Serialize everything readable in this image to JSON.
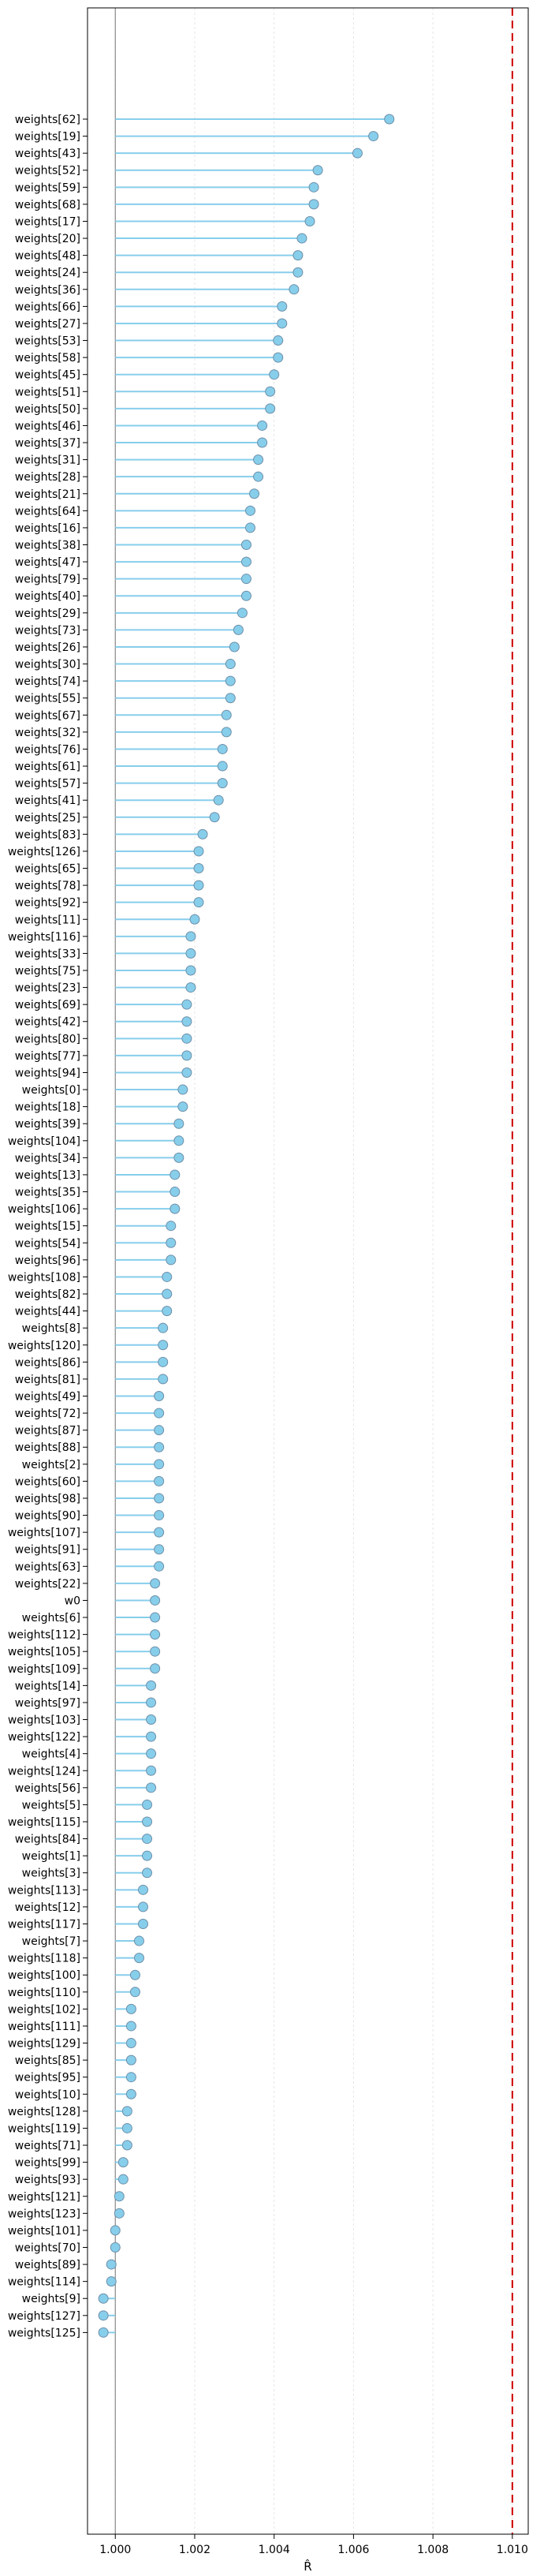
{
  "chart_data": {
    "type": "lollipop",
    "xlabel": "R̂",
    "xlim": [
      0.9993,
      1.0104
    ],
    "xticks": [
      1.0,
      1.002,
      1.004,
      1.006,
      1.008,
      1.01
    ],
    "xtick_labels": [
      "1.000",
      "1.002",
      "1.004",
      "1.006",
      "1.008",
      "1.010"
    ],
    "grid": "x",
    "reference_lines": [
      {
        "value": 1.0,
        "color": "#888888",
        "style": "solid"
      },
      {
        "value": 1.01,
        "color": "#cc0000",
        "style": "dashed"
      }
    ],
    "stem_color": "#87ceeb",
    "marker_color": "#87ceeb",
    "marker_edge": "#6d8fa8",
    "categories": [
      "weights[62]",
      "weights[19]",
      "weights[43]",
      "weights[52]",
      "weights[59]",
      "weights[68]",
      "weights[17]",
      "weights[20]",
      "weights[48]",
      "weights[24]",
      "weights[36]",
      "weights[66]",
      "weights[27]",
      "weights[53]",
      "weights[58]",
      "weights[45]",
      "weights[51]",
      "weights[50]",
      "weights[46]",
      "weights[37]",
      "weights[31]",
      "weights[28]",
      "weights[21]",
      "weights[64]",
      "weights[16]",
      "weights[38]",
      "weights[47]",
      "weights[79]",
      "weights[40]",
      "weights[29]",
      "weights[73]",
      "weights[26]",
      "weights[30]",
      "weights[74]",
      "weights[55]",
      "weights[67]",
      "weights[32]",
      "weights[76]",
      "weights[61]",
      "weights[57]",
      "weights[41]",
      "weights[25]",
      "weights[83]",
      "weights[126]",
      "weights[65]",
      "weights[78]",
      "weights[92]",
      "weights[11]",
      "weights[116]",
      "weights[33]",
      "weights[75]",
      "weights[23]",
      "weights[69]",
      "weights[42]",
      "weights[80]",
      "weights[77]",
      "weights[94]",
      "weights[0]",
      "weights[18]",
      "weights[39]",
      "weights[104]",
      "weights[34]",
      "weights[13]",
      "weights[35]",
      "weights[106]",
      "weights[15]",
      "weights[54]",
      "weights[96]",
      "weights[108]",
      "weights[82]",
      "weights[44]",
      "weights[8]",
      "weights[120]",
      "weights[86]",
      "weights[81]",
      "weights[49]",
      "weights[72]",
      "weights[87]",
      "weights[88]",
      "weights[2]",
      "weights[60]",
      "weights[98]",
      "weights[90]",
      "weights[107]",
      "weights[91]",
      "weights[63]",
      "weights[22]",
      "w0",
      "weights[6]",
      "weights[112]",
      "weights[105]",
      "weights[109]",
      "weights[14]",
      "weights[97]",
      "weights[103]",
      "weights[122]",
      "weights[4]",
      "weights[124]",
      "weights[56]",
      "weights[5]",
      "weights[115]",
      "weights[84]",
      "weights[1]",
      "weights[3]",
      "weights[113]",
      "weights[12]",
      "weights[117]",
      "weights[7]",
      "weights[118]",
      "weights[100]",
      "weights[110]",
      "weights[102]",
      "weights[111]",
      "weights[129]",
      "weights[85]",
      "weights[95]",
      "weights[10]",
      "weights[128]",
      "weights[119]",
      "weights[71]",
      "weights[99]",
      "weights[93]",
      "weights[121]",
      "weights[123]",
      "weights[101]",
      "weights[70]",
      "weights[89]",
      "weights[114]",
      "weights[9]",
      "weights[127]",
      "weights[125]"
    ],
    "values": [
      1.0069,
      1.0065,
      1.0061,
      1.0051,
      1.005,
      1.005,
      1.0049,
      1.0047,
      1.0046,
      1.0046,
      1.0045,
      1.0042,
      1.0042,
      1.0041,
      1.0041,
      1.004,
      1.0039,
      1.0039,
      1.0037,
      1.0037,
      1.0036,
      1.0036,
      1.0035,
      1.0034,
      1.0034,
      1.0033,
      1.0033,
      1.0033,
      1.0033,
      1.0032,
      1.0031,
      1.003,
      1.0029,
      1.0029,
      1.0029,
      1.0028,
      1.0028,
      1.0027,
      1.0027,
      1.0027,
      1.0026,
      1.0025,
      1.0022,
      1.0021,
      1.0021,
      1.0021,
      1.0021,
      1.002,
      1.0019,
      1.0019,
      1.0019,
      1.0019,
      1.0018,
      1.0018,
      1.0018,
      1.0018,
      1.0018,
      1.0017,
      1.0017,
      1.0016,
      1.0016,
      1.0016,
      1.0015,
      1.0015,
      1.0015,
      1.0014,
      1.0014,
      1.0014,
      1.0013,
      1.0013,
      1.0013,
      1.0012,
      1.0012,
      1.0012,
      1.0012,
      1.0011,
      1.0011,
      1.0011,
      1.0011,
      1.0011,
      1.0011,
      1.0011,
      1.0011,
      1.0011,
      1.0011,
      1.0011,
      1.001,
      1.001,
      1.001,
      1.001,
      1.001,
      1.001,
      1.0009,
      1.0009,
      1.0009,
      1.0009,
      1.0009,
      1.0009,
      1.0009,
      1.0008,
      1.0008,
      1.0008,
      1.0008,
      1.0008,
      1.0007,
      1.0007,
      1.0007,
      1.0006,
      1.0006,
      1.0005,
      1.0005,
      1.0004,
      1.0004,
      1.0004,
      1.0004,
      1.0004,
      1.0004,
      1.0003,
      1.0003,
      1.0003,
      1.0002,
      1.0002,
      1.0001,
      1.0001,
      1.0,
      1.0,
      0.9999,
      0.9999,
      0.9997,
      0.9997,
      0.9997
    ]
  }
}
